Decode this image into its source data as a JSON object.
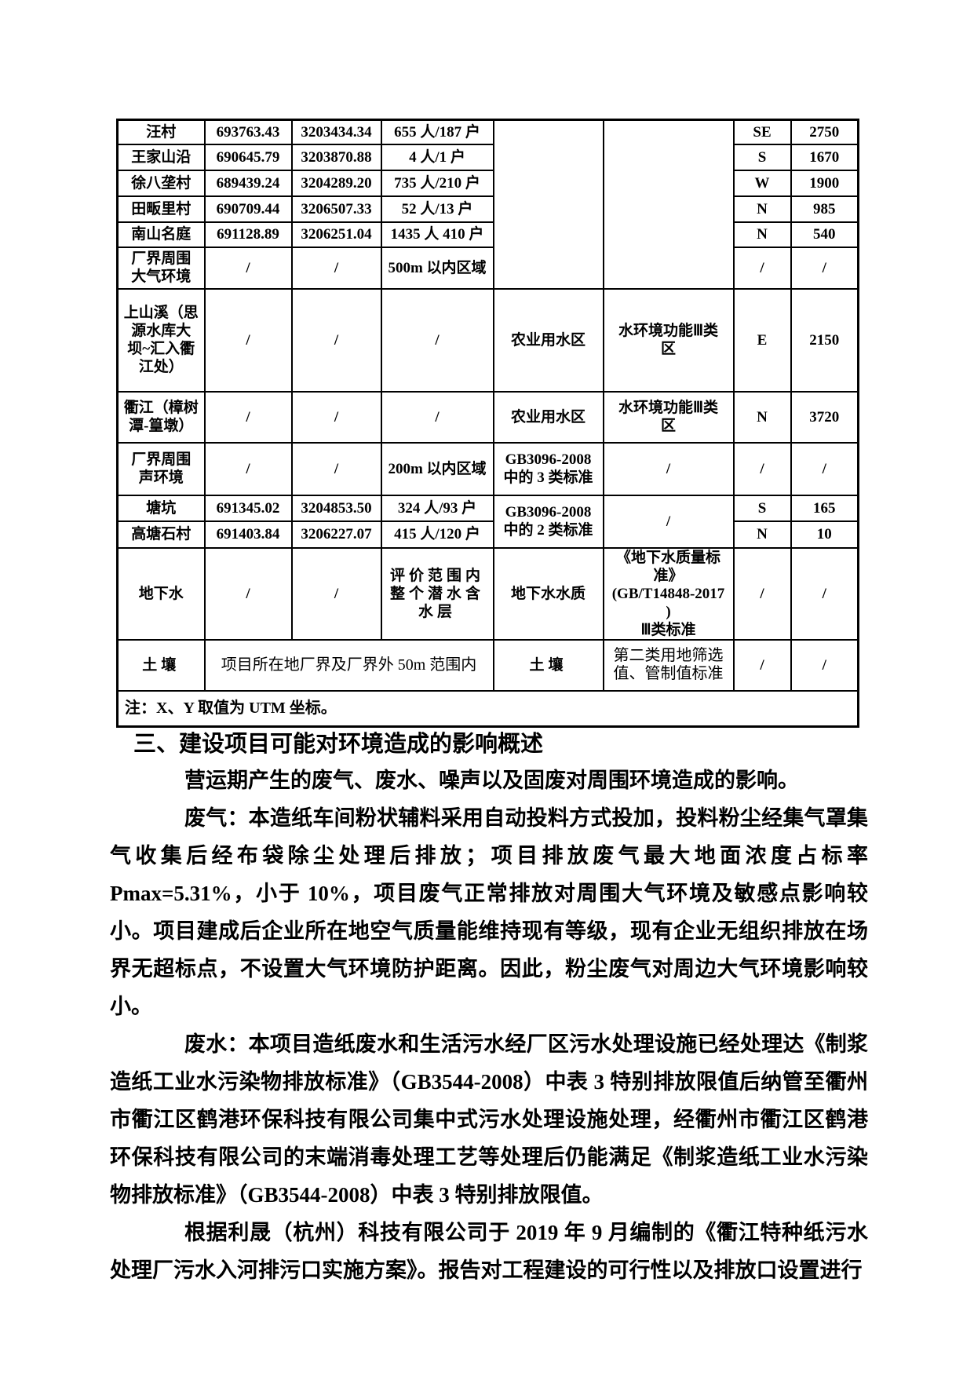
{
  "table": {
    "name": "environmental-sensitive-targets-table",
    "rows": [
      {
        "cells": [
          {
            "t": "汪村"
          },
          {
            "t": "693763.43"
          },
          {
            "t": "3203434.34"
          },
          {
            "t": "655 人/187 户"
          },
          {
            "t": "",
            "rs": 6
          },
          {
            "t": "",
            "rs": 6
          },
          {
            "t": "SE"
          },
          {
            "t": "2750"
          }
        ]
      },
      {
        "cells": [
          {
            "t": "王家山沿"
          },
          {
            "t": "690645.79"
          },
          {
            "t": "3203870.88"
          },
          {
            "t": "4 人/1 户"
          },
          {
            "t": "S"
          },
          {
            "t": "1670"
          }
        ]
      },
      {
        "cells": [
          {
            "t": "徐八垄村"
          },
          {
            "t": "689439.24"
          },
          {
            "t": "3204289.20"
          },
          {
            "t": "735 人/210 户"
          },
          {
            "t": "W"
          },
          {
            "t": "1900"
          }
        ]
      },
      {
        "cells": [
          {
            "t": "田畈里村"
          },
          {
            "t": "690709.44"
          },
          {
            "t": "3206507.33"
          },
          {
            "t": "52 人/13 户"
          },
          {
            "t": "N"
          },
          {
            "t": "985"
          }
        ]
      },
      {
        "cells": [
          {
            "t": "南山名庭"
          },
          {
            "t": "691128.89"
          },
          {
            "t": "3206251.04"
          },
          {
            "t": "1435 人 410 户"
          },
          {
            "t": "N"
          },
          {
            "t": "540"
          }
        ]
      },
      {
        "cells": [
          {
            "t": "厂界周围\n大气环境"
          },
          {
            "t": "/"
          },
          {
            "t": "/"
          },
          {
            "t": "500m 以内区域"
          },
          {
            "t": "/"
          },
          {
            "t": "/"
          }
        ]
      },
      {
        "cells": [
          {
            "t": "上山溪（思\n源水库大\n坝~汇入衢\n江处）"
          },
          {
            "t": "/"
          },
          {
            "t": "/"
          },
          {
            "t": "/"
          },
          {
            "t": "农业用水区"
          },
          {
            "t": "水环境功能Ⅲ类\n区"
          },
          {
            "t": "E"
          },
          {
            "t": "2150"
          }
        ]
      },
      {
        "cells": [
          {
            "t": "衢江（樟树\n潭-篁墩）"
          },
          {
            "t": "/"
          },
          {
            "t": "/"
          },
          {
            "t": "/"
          },
          {
            "t": "农业用水区"
          },
          {
            "t": "水环境功能Ⅲ类\n区"
          },
          {
            "t": "N"
          },
          {
            "t": "3720"
          }
        ]
      },
      {
        "cells": [
          {
            "t": "厂界周围\n声环境"
          },
          {
            "t": "/"
          },
          {
            "t": "/"
          },
          {
            "t": "200m 以内区域"
          },
          {
            "t": "GB3096-2008\n中的 3 类标准"
          },
          {
            "t": "/"
          },
          {
            "t": "/"
          },
          {
            "t": "/"
          }
        ]
      },
      {
        "cells": [
          {
            "t": "塘坑"
          },
          {
            "t": "691345.02"
          },
          {
            "t": "3204853.50"
          },
          {
            "t": "324 人/93 户"
          },
          {
            "t": "GB3096-2008\n中的 2 类标准",
            "rs": 2
          },
          {
            "t": "/",
            "rs": 2
          },
          {
            "t": "S"
          },
          {
            "t": "165"
          }
        ]
      },
      {
        "cells": [
          {
            "t": "高塘石村"
          },
          {
            "t": "691403.84"
          },
          {
            "t": "3206227.07"
          },
          {
            "t": "415 人/120 户"
          },
          {
            "t": "N"
          },
          {
            "t": "10"
          }
        ]
      },
      {
        "cells": [
          {
            "t": "地下水"
          },
          {
            "t": "/"
          },
          {
            "t": "/"
          },
          {
            "t": "评价范围内\n整个潜水含\n水层",
            "cls": "sp"
          },
          {
            "t": "地下水水质"
          },
          {
            "t": "《地下水质量标\n准》\n(GB/T14848-2017\n)\nⅢ类标准"
          },
          {
            "t": "/"
          },
          {
            "t": "/"
          }
        ]
      },
      {
        "cells": [
          {
            "t": "土壤",
            "cls": "sp"
          },
          {
            "t": "项目所在地厂界及厂界外 50m 范围内",
            "cs": 3,
            "cls": "rg"
          },
          {
            "t": "土壤",
            "cls": "sp"
          },
          {
            "t": "第二类用地筛选\n值、管制值标准",
            "cls": "rg"
          },
          {
            "t": "/"
          },
          {
            "t": "/"
          }
        ]
      },
      {
        "cells": [
          {
            "t": "注：X、Y 取值为 UTM 坐标。",
            "cs": 8,
            "cls": "note"
          }
        ]
      }
    ]
  },
  "section": {
    "heading": "三、建设项目可能对环境造成的影响概述",
    "paragraphs": [
      "营运期产生的废气、废水、噪声以及固废对周围环境造成的影响。",
      "废气：本造纸车间粉状辅料采用自动投料方式投加，投料粉尘经集气罩集气收集后经布袋除尘处理后排放；项目排放废气最大地面浓度占标率 Pmax=5.31%，小于 10%，项目废气正常排放对周围大气环境及敏感点影响较小。项目建成后企业所在地空气质量能维持现有等级，现有企业无组织排放在场界无超标点，不设置大气环境防护距离。因此，粉尘废气对周边大气环境影响较小。",
      "废水：本项目造纸废水和生活污水经厂区污水处理设施已经处理达《制浆造纸工业水污染物排放标准》（GB3544-2008）中表 3 特别排放限值后纳管至衢州市衢江区鹤港环保科技有限公司集中式污水处理设施处理，经衢州市衢江区鹤港环保科技有限公司的末端消毒处理工艺等处理后仍能满足《制浆造纸工业水污染物排放标准》（GB3544-2008）中表 3 特别排放限值。",
      "根据利晟（杭州）科技有限公司于 2019 年 9 月编制的《衢江特种纸污水处理厂污水入河排污口实施方案》。报告对工程建设的可行性以及排放口设置进行"
    ]
  }
}
